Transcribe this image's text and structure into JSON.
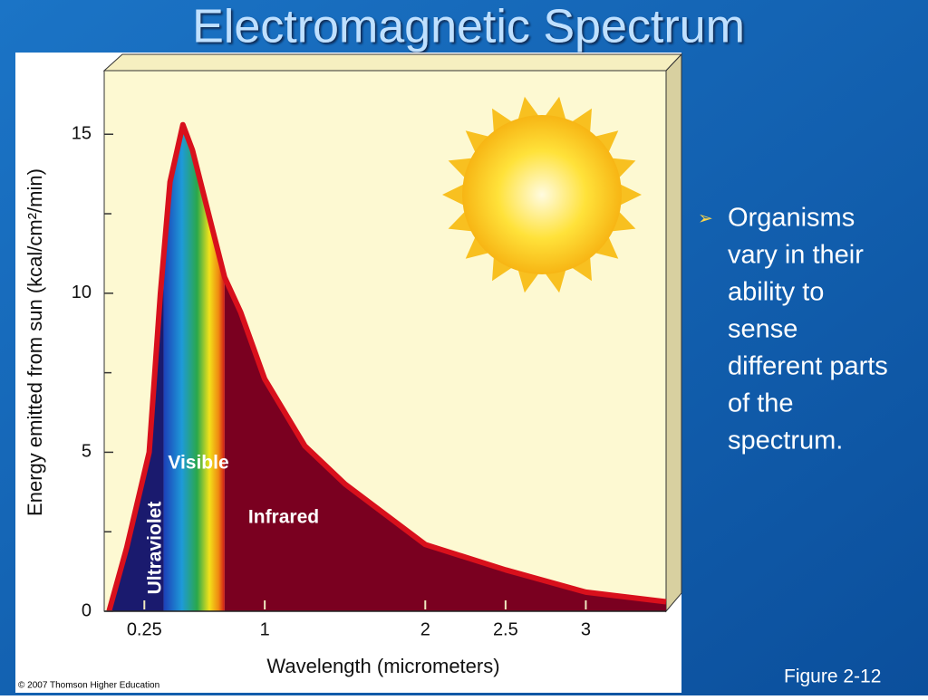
{
  "slide": {
    "title": "Electromagnetic Spectrum",
    "bullet_lines": [
      "Organisms",
      "vary in their",
      "ability to",
      "sense",
      "different parts",
      "of the",
      "spectrum."
    ],
    "figure_label": "Figure 2-12",
    "credit": "© 2007 Thomson Higher Education"
  },
  "chart_data": {
    "type": "area",
    "x_label": "Wavelength (micrometers)",
    "y_label": "Energy emitted from sun (kcal/cm²/min)",
    "x": [
      0.03,
      0.14,
      0.28,
      0.35,
      0.41,
      0.49,
      0.55,
      0.65,
      0.75,
      0.85,
      1.0,
      1.25,
      1.5,
      2.0,
      2.5,
      3.0,
      3.5
    ],
    "values": [
      0,
      2,
      5,
      10,
      13.5,
      15.3,
      14.5,
      12.5,
      10.5,
      9.4,
      7.3,
      5.2,
      4,
      2.1,
      1.3,
      0.6,
      0.3
    ],
    "color": "#7a0020",
    "line_color": "#d8101c",
    "regions": [
      {
        "label": "Ultraviolet",
        "from": 0,
        "to": 0.37,
        "color": "#1a1a6e"
      },
      {
        "label": "Visible",
        "from": 0.37,
        "to": 0.75
      },
      {
        "label": "Infrared",
        "from": 0.75,
        "to": 3.5,
        "color": "#7a0020"
      }
    ],
    "xlim": [
      0,
      3.5
    ],
    "xticks": [
      0.25,
      1,
      2,
      2.5,
      3
    ],
    "ylim": [
      0,
      17
    ],
    "yticks": [
      0,
      5,
      10,
      15
    ],
    "yminor": [
      2.5,
      7.5,
      12.5
    ]
  }
}
